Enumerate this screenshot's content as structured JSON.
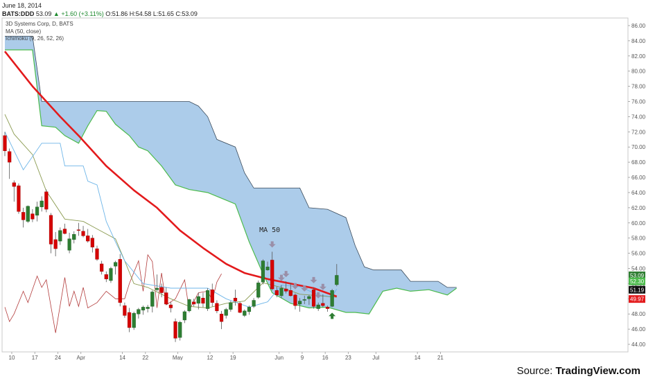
{
  "header": {
    "date": "June 18, 2014",
    "symbol": "BATS:DDD",
    "last": "53.09",
    "change": "+1.60 (+3.11%)",
    "ohlc_o": "O:51.86",
    "ohlc_h": "H:54.58",
    "ohlc_l": "L:51.65",
    "ohlc_c": "C:53.09"
  },
  "legend": {
    "line1": "3D Systems Corp, D, BATS",
    "line2": "MA (50, close)",
    "line3": "Ichimoku (9, 26, 52, 26)"
  },
  "annotation": "MA 50",
  "source": {
    "prefix": "Source: ",
    "name": "TradingView.com"
  },
  "colors": {
    "up": "#2e7d32",
    "down": "#d50000",
    "ma": "#e31a1c",
    "cloud": "#9ec3e6",
    "span_a": "#4cbb4c",
    "span_b": "#3a4a5a",
    "tenkan": "#6db5e8",
    "kijun": "#8a9a50",
    "chikou": "#b23a3a",
    "sell_arrow": "#9a8fa8",
    "buy_arrow": "#2e7d32"
  },
  "chart_data": {
    "type": "candlestick",
    "title": "3D Systems Corp, D, BATS",
    "ylim": [
      43,
      87
    ],
    "y_ticks": [
      "86.00",
      "84.00",
      "82.00",
      "80.00",
      "78.00",
      "76.00",
      "74.00",
      "72.00",
      "70.00",
      "68.00",
      "66.00",
      "64.00",
      "62.00",
      "60.00",
      "58.00",
      "56.00",
      "54.00",
      "52.00",
      "50.00",
      "48.00",
      "46.00",
      "44.00"
    ],
    "x_ticks": [
      {
        "label": "10",
        "i": 1.5
      },
      {
        "label": "17",
        "i": 6.5
      },
      {
        "label": "24",
        "i": 11.5
      },
      {
        "label": "Apr",
        "i": 16.5
      },
      {
        "label": "14",
        "i": 25.5
      },
      {
        "label": "22",
        "i": 30.5
      },
      {
        "label": "May",
        "i": 37.5
      },
      {
        "label": "12",
        "i": 44.5
      },
      {
        "label": "19",
        "i": 49.5
      },
      {
        "label": "Jun",
        "i": 59.5
      },
      {
        "label": "9",
        "i": 64.5
      },
      {
        "label": "16",
        "i": 69.5
      },
      {
        "label": "23",
        "i": 74.5
      },
      {
        "label": "Jul",
        "i": 80.5
      },
      {
        "label": "14",
        "i": 89.5
      },
      {
        "label": "21",
        "i": 94.5
      }
    ],
    "price_tags": [
      {
        "value": 53.09,
        "label": "53.09",
        "color": "#2e7d32"
      },
      {
        "value": 52.3,
        "label": "52.30",
        "color": "#4cbb4c"
      },
      {
        "value": 51.19,
        "label": "51.19",
        "color": "#111111"
      },
      {
        "value": 49.97,
        "label": "49.97",
        "color": "#e31a1c"
      }
    ],
    "candles": [
      [
        71.5,
        72.0,
        68.8,
        69.5
      ],
      [
        69.4,
        69.8,
        65.8,
        68.0
      ],
      [
        65.3,
        65.6,
        62.8,
        64.8
      ],
      [
        64.9,
        65.2,
        61.2,
        61.5
      ],
      [
        61.4,
        62.0,
        59.4,
        60.4
      ],
      [
        60.2,
        62.3,
        60.0,
        62.2
      ],
      [
        61.2,
        61.8,
        60.1,
        60.5
      ],
      [
        61.0,
        62.8,
        60.2,
        62.1
      ],
      [
        62.1,
        63.5,
        61.5,
        62.9
      ],
      [
        64.1,
        64.4,
        61.4,
        61.8
      ],
      [
        61.0,
        61.3,
        56.0,
        57.2
      ],
      [
        57.8,
        58.8,
        55.6,
        56.6
      ],
      [
        57.6,
        59.4,
        57.1,
        59.0
      ],
      [
        59.2,
        59.9,
        58.5,
        58.6
      ],
      [
        56.4,
        58.7,
        56.0,
        57.9
      ],
      [
        57.8,
        58.9,
        57.3,
        58.5
      ],
      [
        59.1,
        60.0,
        58.3,
        59.0
      ],
      [
        58.9,
        59.6,
        58.1,
        58.3
      ],
      [
        58.3,
        59.2,
        57.4,
        57.6
      ],
      [
        58.0,
        58.4,
        56.1,
        56.8
      ],
      [
        56.6,
        57.0,
        55.0,
        55.2
      ],
      [
        54.6,
        55.0,
        53.2,
        53.6
      ],
      [
        53.2,
        53.6,
        52.2,
        52.6
      ],
      [
        52.4,
        54.2,
        52.1,
        54.0
      ],
      [
        54.3,
        55.0,
        53.2,
        54.8
      ],
      [
        55.2,
        55.9,
        49.0,
        49.5
      ],
      [
        49.1,
        49.5,
        47.5,
        47.8
      ],
      [
        48.2,
        48.8,
        45.6,
        46.2
      ],
      [
        46.2,
        48.3,
        45.9,
        48.1
      ],
      [
        48.0,
        48.8,
        47.4,
        48.6
      ],
      [
        48.5,
        49.1,
        47.9,
        48.9
      ],
      [
        48.7,
        49.2,
        48.2,
        48.9
      ],
      [
        49.0,
        51.1,
        48.2,
        50.9
      ],
      [
        51.2,
        53.2,
        51.0,
        51.4
      ],
      [
        51.5,
        52.0,
        50.2,
        50.8
      ],
      [
        50.8,
        51.5,
        49.2,
        49.3
      ],
      [
        49.2,
        49.6,
        48.2,
        48.8
      ],
      [
        47.0,
        47.4,
        44.3,
        44.8
      ],
      [
        44.9,
        47.1,
        44.5,
        46.9
      ],
      [
        47.2,
        48.5,
        46.8,
        48.3
      ],
      [
        48.4,
        50.0,
        48.2,
        49.9
      ],
      [
        49.6,
        50.0,
        49.0,
        49.3
      ],
      [
        49.4,
        50.8,
        48.6,
        50.3
      ],
      [
        50.1,
        50.8,
        48.9,
        49.4
      ],
      [
        48.7,
        51.4,
        48.4,
        51.1
      ],
      [
        51.2,
        52.0,
        49.0,
        49.5
      ],
      [
        49.4,
        49.8,
        48.1,
        48.4
      ],
      [
        48.0,
        48.4,
        46.0,
        47.0
      ],
      [
        47.8,
        48.8,
        47.4,
        48.6
      ],
      [
        48.6,
        49.7,
        48.3,
        49.5
      ],
      [
        50.1,
        51.2,
        49.1,
        49.7
      ],
      [
        49.4,
        49.6,
        48.1,
        48.2
      ],
      [
        47.8,
        48.6,
        47.6,
        48.4
      ],
      [
        48.3,
        49.1,
        47.9,
        48.9
      ],
      [
        49.0,
        50.1,
        48.8,
        49.8
      ],
      [
        50.2,
        52.4,
        50.0,
        52.1
      ],
      [
        52.2,
        55.2,
        51.9,
        55.0
      ],
      [
        53.8,
        54.9,
        53.7,
        54.2
      ],
      [
        55.1,
        56.2,
        51.1,
        51.3
      ],
      [
        51.1,
        51.6,
        50.2,
        50.5
      ],
      [
        50.4,
        51.8,
        50.1,
        51.4
      ],
      [
        51.3,
        52.3,
        50.7,
        51.0
      ],
      [
        51.1,
        52.1,
        50.3,
        50.4
      ],
      [
        50.5,
        50.7,
        48.6,
        49.1
      ],
      [
        49.3,
        50.1,
        48.3,
        49.7
      ],
      [
        49.8,
        50.4,
        49.3,
        49.9
      ],
      [
        50.0,
        50.5,
        49.2,
        50.3
      ],
      [
        51.2,
        51.5,
        48.7,
        49.0
      ],
      [
        48.7,
        49.5,
        48.4,
        49.2
      ],
      [
        49.4,
        50.6,
        48.9,
        49.1
      ],
      [
        48.9,
        49.1,
        48.3,
        48.7
      ],
      [
        49.0,
        51.3,
        48.9,
        51.1
      ],
      [
        51.86,
        54.58,
        51.65,
        53.09
      ]
    ],
    "ma50": [
      [
        0,
        82.6
      ],
      [
        6,
        78.0
      ],
      [
        12,
        74.0
      ],
      [
        16,
        71.5
      ],
      [
        22,
        67.5
      ],
      [
        28,
        64.3
      ],
      [
        33,
        62.0
      ],
      [
        38,
        59.0
      ],
      [
        43,
        56.7
      ],
      [
        48,
        54.6
      ],
      [
        52,
        53.4
      ],
      [
        57,
        52.6
      ],
      [
        62,
        52.0
      ],
      [
        67,
        51.4
      ],
      [
        72,
        50.3
      ]
    ],
    "tenkan": [
      [
        0,
        72.0
      ],
      [
        4,
        67.0
      ],
      [
        8,
        70.5
      ],
      [
        12,
        70.5
      ],
      [
        13,
        67.5
      ],
      [
        17,
        67.5
      ],
      [
        18,
        65.5
      ],
      [
        20,
        65.0
      ],
      [
        22,
        60.2
      ],
      [
        24,
        57.5
      ],
      [
        26,
        55.0
      ],
      [
        30,
        52.0
      ],
      [
        36,
        51.4
      ],
      [
        44,
        51.4
      ],
      [
        48,
        50.0
      ],
      [
        53,
        48.9
      ],
      [
        57,
        49.6
      ],
      [
        60,
        51.8
      ],
      [
        64,
        51.6
      ],
      [
        68,
        50.5
      ],
      [
        71,
        50.3
      ],
      [
        72,
        51.3
      ]
    ],
    "kijun": [
      [
        0,
        74.3
      ],
      [
        2,
        71.7
      ],
      [
        6,
        69.0
      ],
      [
        9,
        64.2
      ],
      [
        13,
        60.5
      ],
      [
        17,
        60.2
      ],
      [
        20,
        59.2
      ],
      [
        24,
        57.9
      ],
      [
        26,
        55.0
      ],
      [
        28,
        52.0
      ],
      [
        31,
        51.5
      ],
      [
        36,
        50.0
      ],
      [
        40,
        49.0
      ],
      [
        44,
        48.8
      ],
      [
        48,
        49.4
      ],
      [
        52,
        49.7
      ],
      [
        56,
        52.1
      ],
      [
        60,
        51.5
      ],
      [
        64,
        50.6
      ],
      [
        68,
        50.4
      ],
      [
        72,
        50.2
      ]
    ],
    "chikou": [
      [
        0,
        48.9
      ],
      [
        1,
        47.0
      ],
      [
        2,
        48.0
      ],
      [
        4,
        51.0
      ],
      [
        5,
        49.5
      ],
      [
        7,
        53.0
      ],
      [
        8,
        51.5
      ],
      [
        9,
        52.5
      ],
      [
        10,
        49.0
      ],
      [
        11,
        45.5
      ],
      [
        13,
        52.8
      ],
      [
        14,
        49.0
      ],
      [
        15,
        51.0
      ],
      [
        16,
        49.0
      ],
      [
        17,
        51.5
      ],
      [
        18,
        48.8
      ],
      [
        20,
        49.5
      ],
      [
        22,
        51.0
      ],
      [
        24,
        50.0
      ],
      [
        26,
        50.0
      ],
      [
        27,
        52.0
      ],
      [
        29,
        55.0
      ],
      [
        30,
        51.0
      ],
      [
        31,
        55.8
      ],
      [
        32,
        54.9
      ],
      [
        33,
        48.8
      ],
      [
        34,
        53.4
      ],
      [
        35,
        49.2
      ],
      [
        37,
        50.0
      ],
      [
        39,
        52.5
      ],
      [
        40,
        48.5
      ],
      [
        42,
        50.8
      ],
      [
        44,
        51.0
      ],
      [
        45,
        49.8
      ],
      [
        46,
        52.2
      ],
      [
        47,
        53.3
      ]
    ],
    "span_a": [
      [
        0,
        82.8
      ],
      [
        6,
        82.8
      ],
      [
        8,
        72.8
      ],
      [
        11,
        72.6
      ],
      [
        13,
        71.5
      ],
      [
        16,
        70.5
      ],
      [
        18,
        72.8
      ],
      [
        20,
        74.8
      ],
      [
        22,
        74.7
      ],
      [
        24,
        73.0
      ],
      [
        27,
        71.5
      ],
      [
        29,
        70.0
      ],
      [
        31,
        69.5
      ],
      [
        34,
        67.5
      ],
      [
        37,
        65.0
      ],
      [
        40,
        64.4
      ],
      [
        44,
        64.0
      ],
      [
        48,
        63.0
      ],
      [
        50,
        62.5
      ],
      [
        53,
        57.5
      ],
      [
        56,
        53.3
      ],
      [
        58,
        50.8
      ],
      [
        62,
        49.4
      ],
      [
        66,
        48.8
      ],
      [
        70,
        48.9
      ],
      [
        74,
        48.2
      ],
      [
        76,
        48.2
      ],
      [
        79,
        48.0
      ],
      [
        82,
        51.0
      ],
      [
        85,
        51.4
      ],
      [
        88,
        51.0
      ],
      [
        92,
        51.2
      ],
      [
        96,
        50.5
      ],
      [
        98,
        51.4
      ]
    ],
    "span_b": [
      [
        0,
        84.6
      ],
      [
        6,
        84.6
      ],
      [
        8,
        76.0
      ],
      [
        20,
        76.0
      ],
      [
        30,
        76.0
      ],
      [
        40,
        76.0
      ],
      [
        42,
        75.4
      ],
      [
        44,
        74.0
      ],
      [
        46,
        71.0
      ],
      [
        50,
        70.0
      ],
      [
        52,
        66.6
      ],
      [
        54,
        64.6
      ],
      [
        58,
        64.6
      ],
      [
        64,
        64.6
      ],
      [
        66,
        62.0
      ],
      [
        70,
        61.8
      ],
      [
        74,
        60.7
      ],
      [
        76,
        57.0
      ],
      [
        78,
        54.2
      ],
      [
        80,
        53.8
      ],
      [
        86,
        53.8
      ],
      [
        88,
        52.3
      ],
      [
        94,
        52.3
      ],
      [
        96,
        51.5
      ],
      [
        98,
        51.5
      ]
    ],
    "sell_signals": [
      58,
      60,
      61,
      63,
      65,
      67,
      68,
      69
    ],
    "buy_signals": [
      71
    ]
  }
}
